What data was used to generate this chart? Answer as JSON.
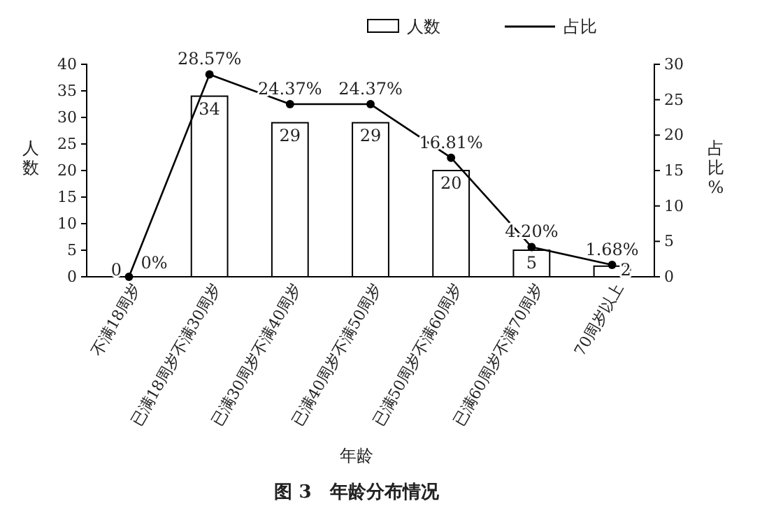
{
  "chart_data": {
    "type": "bar",
    "title": "图 3　年龄分布情况",
    "xlabel": "年龄",
    "ylabel": "人数",
    "y2label": "占比%",
    "categories": [
      "不满18周岁",
      "已满18周岁不满30周岁",
      "已满30周岁不满40周岁",
      "已满40周岁不满50周岁",
      "已满50周岁不满60周岁",
      "已满60周岁不满70周岁",
      "70周岁以上"
    ],
    "series": [
      {
        "name": "人数",
        "type": "bar",
        "color": "#ffffff",
        "values": [
          0,
          34,
          29,
          29,
          20,
          5,
          2
        ],
        "value_labels": [
          "0",
          "34",
          "29",
          "29",
          "20",
          "5",
          "2"
        ]
      },
      {
        "name": "占比",
        "type": "line",
        "axis": "y2",
        "color": "#000000",
        "marker": "circle",
        "values": [
          0,
          28.57,
          24.37,
          24.37,
          16.81,
          4.2,
          1.68
        ],
        "value_labels": [
          "0%",
          "28.57%",
          "24.37%",
          "24.37%",
          "16.81%",
          "4.20%",
          "1.68%"
        ]
      }
    ],
    "ylim": [
      0,
      40
    ],
    "yticks": [
      0,
      5,
      10,
      15,
      20,
      25,
      30,
      35,
      40
    ],
    "y2lim": [
      0,
      30
    ],
    "y2ticks": [
      0,
      5,
      10,
      15,
      20,
      25,
      30
    ],
    "legend": "top right",
    "grid": false
  }
}
